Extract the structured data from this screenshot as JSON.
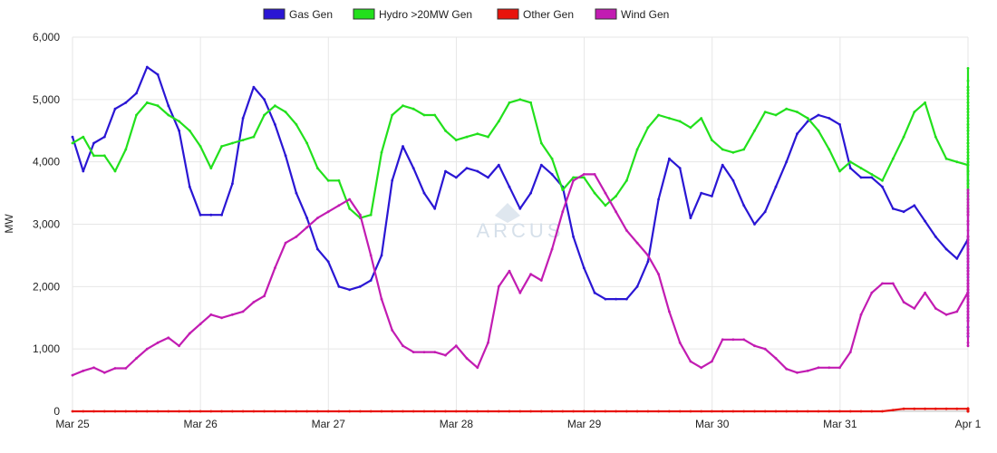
{
  "chart_data": {
    "type": "line",
    "x_tick_labels": [
      "Mar 25",
      "Mar 26",
      "Mar 27",
      "Mar 28",
      "Mar 29",
      "Mar 30",
      "Mar 31",
      "Apr 1"
    ],
    "ylabel": "MW",
    "ylim": [
      0,
      6000
    ],
    "y_ticks": [
      0,
      1000,
      2000,
      3000,
      4000,
      5000,
      6000
    ],
    "y_tick_labels": [
      "0",
      "1,000",
      "2,000",
      "3,000",
      "4,000",
      "5,000",
      "6,000"
    ],
    "grid": true,
    "legend_position": "top-center",
    "x_step_days": 0.0833,
    "series": [
      {
        "name": "Gas Gen",
        "color": "#2a16d4",
        "values": [
          4400,
          3850,
          4300,
          4400,
          4850,
          4950,
          5100,
          5520,
          5400,
          4900,
          4500,
          3600,
          3150,
          3150,
          3150,
          3650,
          4700,
          5200,
          5000,
          4600,
          4100,
          3500,
          3100,
          2600,
          2400,
          2000,
          1950,
          2000,
          2100,
          2500,
          3700,
          4250,
          3900,
          3500,
          3250,
          3850,
          3750,
          3900,
          3850,
          3750,
          3950,
          3600,
          3250,
          3500,
          3950,
          3800,
          3600,
          2800,
          2300,
          1900,
          1800,
          1800,
          1800,
          2000,
          2400,
          3400,
          4050,
          3900,
          3100,
          3500,
          3450,
          3950,
          3700,
          3300,
          3000,
          3200,
          3600,
          4000,
          4450,
          4650,
          4750,
          4700,
          4600,
          3900,
          3750,
          3750,
          3600,
          3250,
          3200,
          3300,
          3050,
          2800,
          2600,
          2450,
          2750,
          2450,
          2600,
          2500,
          2450,
          2450,
          2500,
          2800,
          3200,
          3700,
          3650,
          3500,
          3200,
          2500,
          1950,
          1600,
          2000,
          2300,
          2250,
          2200,
          2350,
          2200,
          1900,
          1550,
          1500,
          1500,
          1500,
          1450,
          1500,
          1600,
          2400,
          2800,
          2600,
          2600,
          2500,
          2300,
          2200,
          2000,
          1850,
          1700,
          1700,
          1850,
          2050,
          2250,
          2200,
          2200,
          2250,
          2200,
          2250,
          2600,
          2300,
          2200,
          2200,
          2200,
          2300,
          2400,
          2800,
          3200,
          3250,
          2800,
          2400,
          2050,
          1850,
          1350,
          1200,
          1200,
          1250,
          1350,
          1700,
          2200,
          2600,
          2400,
          2300,
          1900,
          1750,
          1800,
          2100,
          2150,
          2300,
          2750,
          3000,
          3250,
          3450,
          3700,
          4000,
          3550,
          3400,
          2650
        ]
      },
      {
        "name": "Hydro >20MW Gen",
        "color": "#22e01c",
        "values": [
          4300,
          4400,
          4100,
          4100,
          3850,
          4200,
          4750,
          4950,
          4900,
          4750,
          4650,
          4500,
          4250,
          3900,
          4250,
          4300,
          4350,
          4400,
          4750,
          4900,
          4800,
          4600,
          4300,
          3900,
          3700,
          3700,
          3250,
          3100,
          3150,
          4150,
          4750,
          4900,
          4850,
          4750,
          4750,
          4500,
          4350,
          4400,
          4450,
          4400,
          4650,
          4950,
          5000,
          4950,
          4300,
          4050,
          3550,
          3750,
          3750,
          3500,
          3300,
          3450,
          3700,
          4200,
          4550,
          4750,
          4700,
          4650,
          4550,
          4700,
          4350,
          4200,
          4150,
          4200,
          4500,
          4800,
          4750,
          4850,
          4800,
          4700,
          4500,
          4200,
          3850,
          4000,
          3900,
          3800,
          3700,
          4050,
          4400,
          4800,
          4950,
          4400,
          4050,
          4000,
          3950,
          3400,
          3250,
          3250,
          3850,
          4700,
          5200,
          5100,
          4800,
          4650,
          4250,
          4000,
          4050,
          4150,
          4050,
          3950,
          4100,
          4350,
          4500,
          4600,
          4400,
          3850,
          3800,
          3650,
          3850,
          4300,
          4050,
          4200,
          4600,
          5050,
          5200,
          5100,
          4800,
          4300,
          4000,
          3650,
          3600,
          3400,
          3550,
          3450,
          3150,
          4500,
          4850,
          4700,
          4550,
          4250,
          4200,
          4150,
          4100,
          4150,
          4050,
          4750,
          5150,
          5300,
          5050,
          4950,
          4300,
          3700,
          3250,
          3200,
          3400,
          3250,
          3300,
          3650,
          4300,
          5150,
          5050,
          4950,
          4600,
          4500,
          4500,
          4450,
          4550,
          4600,
          4700,
          4850,
          5000,
          5500,
          5200,
          4900,
          4600,
          3950
        ]
      },
      {
        "name": "Other Gen",
        "color": "#e8130b",
        "values": [
          0,
          0,
          0,
          0,
          0,
          0,
          0,
          0,
          0,
          0,
          0,
          0,
          0,
          0,
          0,
          0,
          0,
          0,
          0,
          0,
          0,
          0,
          0,
          0,
          0,
          0,
          0,
          0,
          0,
          0,
          0,
          0,
          0,
          0,
          0,
          0,
          0,
          0,
          0,
          0,
          0,
          0,
          0,
          0,
          0,
          0,
          0,
          0,
          0,
          0,
          0,
          0,
          0,
          0,
          0,
          0,
          0,
          0,
          0,
          0,
          0,
          0,
          0,
          0,
          0,
          0,
          0,
          0,
          0,
          0,
          0,
          0,
          0,
          0,
          0,
          0,
          0,
          20,
          40,
          40,
          40,
          40,
          40,
          40,
          40,
          40,
          40,
          40,
          40,
          40,
          40,
          40,
          40,
          40,
          40,
          40,
          40,
          0,
          0,
          0,
          0,
          0,
          0,
          0,
          0,
          40,
          40,
          40,
          40,
          40,
          40,
          40,
          40,
          40,
          40,
          40,
          40,
          40,
          40,
          40,
          40,
          40,
          40,
          40,
          40,
          40,
          40,
          40,
          0,
          0,
          0,
          0,
          20,
          40,
          40,
          40,
          40,
          40,
          0,
          0,
          0,
          0,
          0,
          0,
          30,
          40,
          40,
          40,
          40,
          40,
          0,
          0,
          0,
          0,
          0,
          0,
          0,
          0,
          0,
          0,
          0,
          0,
          0,
          0,
          0,
          0,
          0,
          0,
          0,
          0,
          0,
          0,
          0,
          0,
          0,
          0
        ]
      },
      {
        "name": "Wind Gen",
        "color": "#c21cb2",
        "values": [
          580,
          650,
          700,
          620,
          690,
          690,
          850,
          1000,
          1100,
          1180,
          1050,
          1250,
          1400,
          1550,
          1500,
          1550,
          1600,
          1750,
          1850,
          2300,
          2700,
          2800,
          2950,
          3100,
          3200,
          3300,
          3400,
          3150,
          2500,
          1800,
          1300,
          1050,
          950,
          950,
          950,
          900,
          1050,
          850,
          700,
          1100,
          2000,
          2250,
          1900,
          2200,
          2100,
          2600,
          3200,
          3700,
          3800,
          3800,
          3500,
          3200,
          2900,
          2700,
          2500,
          2200,
          1600,
          1100,
          800,
          700,
          800,
          1150,
          1150,
          1150,
          1050,
          1000,
          850,
          680,
          620,
          650,
          700,
          700,
          700,
          950,
          1550,
          1900,
          2050,
          2050,
          1750,
          1650,
          1900,
          1650,
          1550,
          1600,
          1900,
          1750,
          1600,
          1750,
          2250,
          2100,
          1850,
          1800,
          1950,
          1800,
          2000,
          2300,
          2450,
          2650,
          2200,
          2000,
          1950,
          1950,
          2000,
          2050,
          2050,
          1950,
          2000,
          1750,
          1650,
          1650,
          1500,
          1550,
          1450,
          1250,
          1050,
          1100,
          1450,
          1750,
          2000,
          2250,
          2400,
          2900,
          3200,
          3300,
          3250,
          3400,
          3400,
          3500,
          3550,
          3250,
          2700,
          2100,
          1850,
          1750,
          1700,
          1800,
          1850,
          2000,
          2050,
          1900,
          2000,
          2050,
          2200,
          2600,
          2550,
          2600,
          3350,
          3050,
          3200,
          3150,
          3050,
          2800,
          2500,
          2400,
          2600,
          2800,
          3000,
          3150,
          3000,
          3200,
          3150,
          2800,
          2750,
          2400,
          1700,
          1300,
          1250,
          1600,
          2200
        ]
      }
    ]
  },
  "watermark": {
    "text": "ARCUS"
  }
}
